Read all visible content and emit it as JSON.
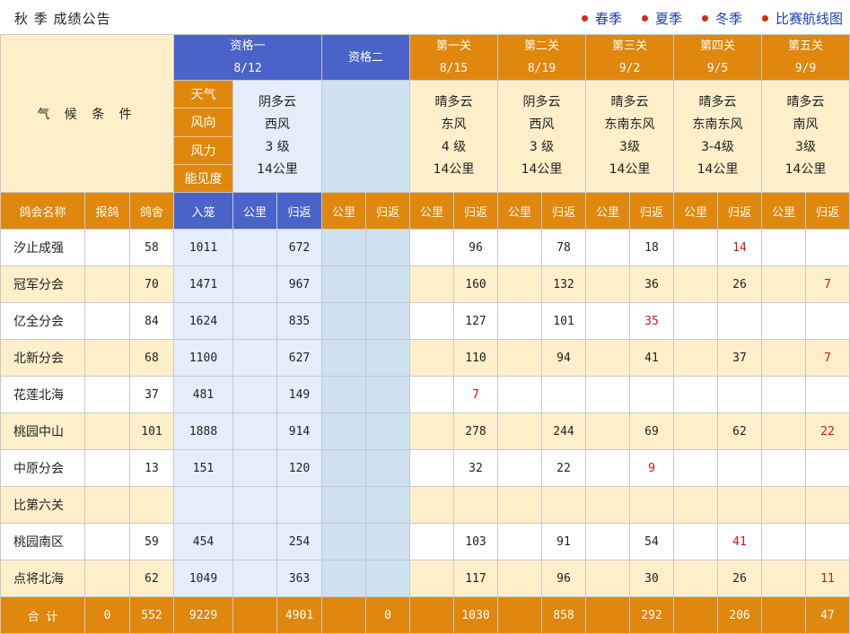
{
  "header": {
    "title": "秋 季 成绩公告",
    "links": [
      "春季",
      "夏季",
      "冬季",
      "比赛航线图"
    ]
  },
  "races": [
    {
      "name": "资格一",
      "date": "8/12",
      "weather": "阴多云",
      "wind_dir": "西风",
      "wind_force": "3 级",
      "visibility": "14公里"
    },
    {
      "name": "资格二",
      "date": "",
      "weather": "",
      "wind_dir": "",
      "wind_force": "",
      "visibility": ""
    },
    {
      "name": "第一关",
      "date": "8/15",
      "weather": "晴多云",
      "wind_dir": "东风",
      "wind_force": "4 级",
      "visibility": "14公里"
    },
    {
      "name": "第二关",
      "date": "8/19",
      "weather": "阴多云",
      "wind_dir": "西风",
      "wind_force": "3 级",
      "visibility": "14公里"
    },
    {
      "name": "第三关",
      "date": "9/2",
      "weather": "晴多云",
      "wind_dir": "东南东风",
      "wind_force": "3级",
      "visibility": "14公里"
    },
    {
      "name": "第四关",
      "date": "9/5",
      "weather": "晴多云",
      "wind_dir": "东南东风",
      "wind_force": "3-4级",
      "visibility": "14公里"
    },
    {
      "name": "第五关",
      "date": "9/9",
      "weather": "晴多云",
      "wind_dir": "南风",
      "wind_force": "3级",
      "visibility": "14公里"
    }
  ],
  "weather_section": {
    "label": "气 候 条 件",
    "row_labels": [
      "天气",
      "风向",
      "风力",
      "能见度"
    ]
  },
  "columns": [
    "鸽会名称",
    "报鸽",
    "鸽舍",
    "入笼",
    "公里",
    "归返",
    "公里",
    "归返",
    "公里",
    "归返",
    "公里",
    "归返",
    "公里",
    "归返",
    "公里",
    "归返",
    "公里",
    "归返"
  ],
  "rows": [
    {
      "name": "汐止成强",
      "bao": "",
      "she": "58",
      "rulong": "1011",
      "q1_km": "",
      "q1_ret": "672",
      "q2_km": "",
      "q2_ret": "",
      "r1_km": "",
      "r1_ret": "96",
      "r2_km": "",
      "r2_ret": "78",
      "r3_km": "",
      "r3_ret": "18",
      "r4_km": "",
      "r4_ret": "14",
      "r5_km": "",
      "r5_ret": ""
    },
    {
      "name": "冠军分会",
      "bao": "",
      "she": "70",
      "rulong": "1471",
      "q1_km": "",
      "q1_ret": "967",
      "q2_km": "",
      "q2_ret": "",
      "r1_km": "",
      "r1_ret": "160",
      "r2_km": "",
      "r2_ret": "132",
      "r3_km": "",
      "r3_ret": "36",
      "r4_km": "",
      "r4_ret": "26",
      "r5_km": "",
      "r5_ret": "7"
    },
    {
      "name": "亿全分会",
      "bao": "",
      "she": "84",
      "rulong": "1624",
      "q1_km": "",
      "q1_ret": "835",
      "q2_km": "",
      "q2_ret": "",
      "r1_km": "",
      "r1_ret": "127",
      "r2_km": "",
      "r2_ret": "101",
      "r3_km": "",
      "r3_ret": "35",
      "r4_km": "",
      "r4_ret": "",
      "r5_km": "",
      "r5_ret": ""
    },
    {
      "name": "北新分会",
      "bao": "",
      "she": "68",
      "rulong": "1100",
      "q1_km": "",
      "q1_ret": "627",
      "q2_km": "",
      "q2_ret": "",
      "r1_km": "",
      "r1_ret": "110",
      "r2_km": "",
      "r2_ret": "94",
      "r3_km": "",
      "r3_ret": "41",
      "r4_km": "",
      "r4_ret": "37",
      "r5_km": "",
      "r5_ret": "7"
    },
    {
      "name": "花莲北海",
      "bao": "",
      "she": "37",
      "rulong": "481",
      "q1_km": "",
      "q1_ret": "149",
      "q2_km": "",
      "q2_ret": "",
      "r1_km": "",
      "r1_ret": "7",
      "r2_km": "",
      "r2_ret": "",
      "r3_km": "",
      "r3_ret": "",
      "r4_km": "",
      "r4_ret": "",
      "r5_km": "",
      "r5_ret": ""
    },
    {
      "name": "桃园中山",
      "bao": "",
      "she": "101",
      "rulong": "1888",
      "q1_km": "",
      "q1_ret": "914",
      "q2_km": "",
      "q2_ret": "",
      "r1_km": "",
      "r1_ret": "278",
      "r2_km": "",
      "r2_ret": "244",
      "r3_km": "",
      "r3_ret": "69",
      "r4_km": "",
      "r4_ret": "62",
      "r5_km": "",
      "r5_ret": "22"
    },
    {
      "name": "中原分会",
      "bao": "",
      "she": "13",
      "rulong": "151",
      "q1_km": "",
      "q1_ret": "120",
      "q2_km": "",
      "q2_ret": "",
      "r1_km": "",
      "r1_ret": "32",
      "r2_km": "",
      "r2_ret": "22",
      "r3_km": "",
      "r3_ret": "9",
      "r4_km": "",
      "r4_ret": "",
      "r5_km": "",
      "r5_ret": ""
    },
    {
      "name": "比第六关",
      "bao": "",
      "she": "",
      "rulong": "",
      "q1_km": "",
      "q1_ret": "",
      "q2_km": "",
      "q2_ret": "",
      "r1_km": "",
      "r1_ret": "",
      "r2_km": "",
      "r2_ret": "",
      "r3_km": "",
      "r3_ret": "",
      "r4_km": "",
      "r4_ret": "",
      "r5_km": "",
      "r5_ret": ""
    },
    {
      "name": "桃园南区",
      "bao": "",
      "she": "59",
      "rulong": "454",
      "q1_km": "",
      "q1_ret": "254",
      "q2_km": "",
      "q2_ret": "",
      "r1_km": "",
      "r1_ret": "103",
      "r2_km": "",
      "r2_ret": "91",
      "r3_km": "",
      "r3_ret": "54",
      "r4_km": "",
      "r4_ret": "41",
      "r5_km": "",
      "r5_ret": ""
    },
    {
      "name": "点将北海",
      "bao": "",
      "she": "62",
      "rulong": "1049",
      "q1_km": "",
      "q1_ret": "363",
      "q2_km": "",
      "q2_ret": "",
      "r1_km": "",
      "r1_ret": "117",
      "r2_km": "",
      "r2_ret": "96",
      "r3_km": "",
      "r3_ret": "30",
      "r4_km": "",
      "r4_ret": "26",
      "r5_km": "",
      "r5_ret": "11"
    }
  ],
  "totals": {
    "label": "合 计",
    "bao": "0",
    "she": "552",
    "rulong": "9229",
    "q1_km": "",
    "q1_ret": "4901",
    "q2_km": "",
    "q2_ret": "0",
    "r1_km": "",
    "r1_ret": "1030",
    "r2_km": "",
    "r2_ret": "858",
    "r3_km": "",
    "r3_ret": "292",
    "r4_km": "",
    "r4_ret": "206",
    "r5_km": "",
    "r5_ret": "47"
  },
  "red_cells": [
    {
      "row": 0,
      "field": "r4_ret"
    },
    {
      "row": 1,
      "field": "r5_ret"
    },
    {
      "row": 2,
      "field": "r3_ret"
    },
    {
      "row": 3,
      "field": "r5_ret"
    },
    {
      "row": 4,
      "field": "r1_ret"
    },
    {
      "row": 5,
      "field": "r5_ret"
    },
    {
      "row": 6,
      "field": "r3_ret"
    },
    {
      "row": 8,
      "field": "r4_ret"
    },
    {
      "row": 9,
      "field": "r5_ret"
    }
  ],
  "colors": {
    "orange": "#e0870d",
    "blue_header": "#4a63c8",
    "cream": "#fcefc9",
    "light_blue": "#e3eefa",
    "mid_blue": "#cde1f0",
    "red_text": "#cc1a1a",
    "link_blue": "#1a3faa",
    "bullet_red": "#d32a1a"
  }
}
